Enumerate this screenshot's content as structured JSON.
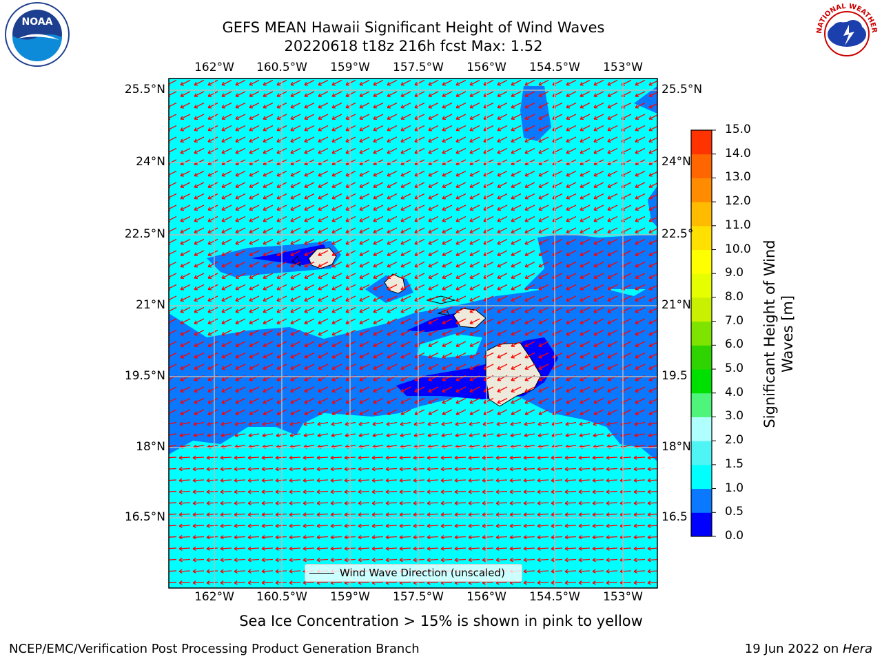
{
  "header": {
    "title_line1": "GEFS MEAN Hawaii Significant Height of Wind Waves",
    "title_line2": "20220618 t18z 216h fcst   Max: 1.52"
  },
  "logos": {
    "noaa_text": "NOAA",
    "nws_text": "NATIONAL WEATHER SERVICE"
  },
  "map": {
    "lon_labels": [
      "162°W",
      "160.5°W",
      "159°W",
      "157.5°W",
      "156°W",
      "154.5°W",
      "153°W"
    ],
    "lat_labels_left": [
      "25.5°N",
      "24°N",
      "22.5°N",
      "21°N",
      "19.5°N",
      "18°N",
      "16.5°N"
    ],
    "lat_labels_right": [
      "25.5°N",
      "24°N",
      "22.5°",
      "21°N",
      "19.5",
      "18°N",
      "16.5"
    ],
    "legend_label": "Wind Wave Direction (unscaled)",
    "arrow_color": "#ff0000",
    "ocean_colors": {
      "0.0-0.5": "#0000ff",
      "0.5-1.0": "#0a78ff",
      "1.0-1.5": "#00ffff",
      "land": "#eeeadb"
    }
  },
  "colorbar": {
    "title_line1": "Significant Height of Wind",
    "title_line2": "Waves [m]",
    "ticks": [
      "15.0",
      "14.0",
      "13.0",
      "12.0",
      "11.0",
      "10.0",
      "9.0",
      "8.0",
      "7.0",
      "6.0",
      "5.0",
      "4.0",
      "3.0",
      "2.0",
      "1.5",
      "1.0",
      "0.5",
      "0.0"
    ],
    "colors_bottom_to_top": [
      "#0000ff",
      "#0a78ff",
      "#00ffff",
      "#4ff4f4",
      "#b0ffff",
      "#4ff47a",
      "#00e000",
      "#2fd400",
      "#7fe300",
      "#c8f000",
      "#e6ff00",
      "#ffff00",
      "#ffe000",
      "#ffbb00",
      "#ff8c00",
      "#ff6600",
      "#ff3300"
    ]
  },
  "footer": {
    "note": "Sea Ice Concentration > 15% is shown in pink to yellow",
    "credit_left": "NCEP/EMC/Verification Post Processing Product Generation Branch",
    "credit_right_date": "19 Jun 2022 on ",
    "credit_right_host": "Hera"
  }
}
